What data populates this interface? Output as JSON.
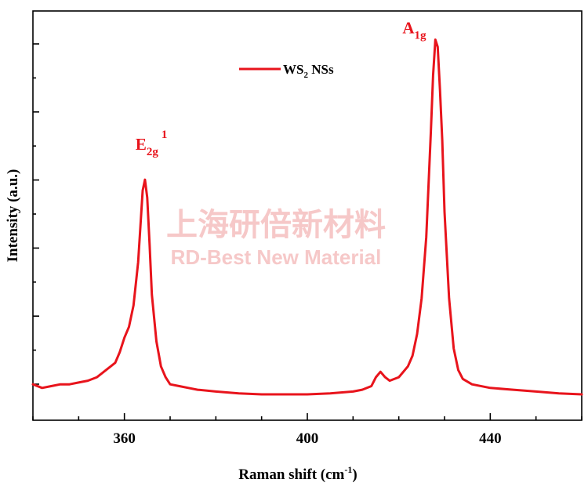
{
  "chart_data": {
    "type": "line",
    "xlabel": "Raman shift (cm",
    "xlabel_sup": "-1",
    "xlabel_close": ")",
    "ylabel": "Intensity (a.u.)",
    "xlim": [
      340,
      460
    ],
    "ylim": [
      -0.06,
      1.08
    ],
    "x_ticks": [
      360,
      400,
      440
    ],
    "x_tick_labels": [
      "360",
      "400",
      "440"
    ],
    "y_tick_labels_visible": false,
    "grid": false,
    "legend": {
      "position": "top-center"
    },
    "series": [
      {
        "name": "WS",
        "name_sub": "2",
        "name_suffix": " NSs",
        "color": "#e8141c",
        "x": [
          340,
          342,
          344,
          346,
          348,
          350,
          352,
          354,
          356,
          357,
          358,
          359,
          360,
          361,
          362,
          363,
          363.5,
          364,
          364.5,
          365,
          365.5,
          366,
          367,
          368,
          369,
          370,
          372,
          374,
          376,
          380,
          385,
          390,
          395,
          400,
          405,
          410,
          412,
          414,
          415,
          416,
          417,
          418,
          420,
          422,
          423,
          424,
          425,
          426,
          427,
          427.5,
          428,
          428.5,
          429,
          429.5,
          430,
          431,
          432,
          433,
          434,
          436,
          440,
          445,
          450,
          455,
          460
        ],
        "y": [
          0.04,
          0.03,
          0.035,
          0.04,
          0.04,
          0.045,
          0.05,
          0.06,
          0.08,
          0.09,
          0.1,
          0.13,
          0.17,
          0.2,
          0.26,
          0.38,
          0.48,
          0.58,
          0.61,
          0.56,
          0.43,
          0.29,
          0.16,
          0.09,
          0.06,
          0.04,
          0.035,
          0.03,
          0.025,
          0.02,
          0.015,
          0.012,
          0.012,
          0.012,
          0.015,
          0.02,
          0.025,
          0.035,
          0.06,
          0.075,
          0.06,
          0.05,
          0.06,
          0.09,
          0.12,
          0.18,
          0.28,
          0.45,
          0.74,
          0.9,
          1.0,
          0.98,
          0.86,
          0.72,
          0.52,
          0.28,
          0.14,
          0.08,
          0.055,
          0.04,
          0.03,
          0.025,
          0.02,
          0.015,
          0.012
        ]
      }
    ],
    "annotations": [
      {
        "label": "E",
        "sub": "2g",
        "sup": "1",
        "x": 364.5,
        "y": 0.61
      },
      {
        "label": "A",
        "sub": "1g",
        "sup": "",
        "x": 428,
        "y": 1.0
      }
    ],
    "watermark": {
      "line1": "上海研倍新材料",
      "line2": "RD-Best New Material",
      "color": "#f6c8c8"
    }
  }
}
